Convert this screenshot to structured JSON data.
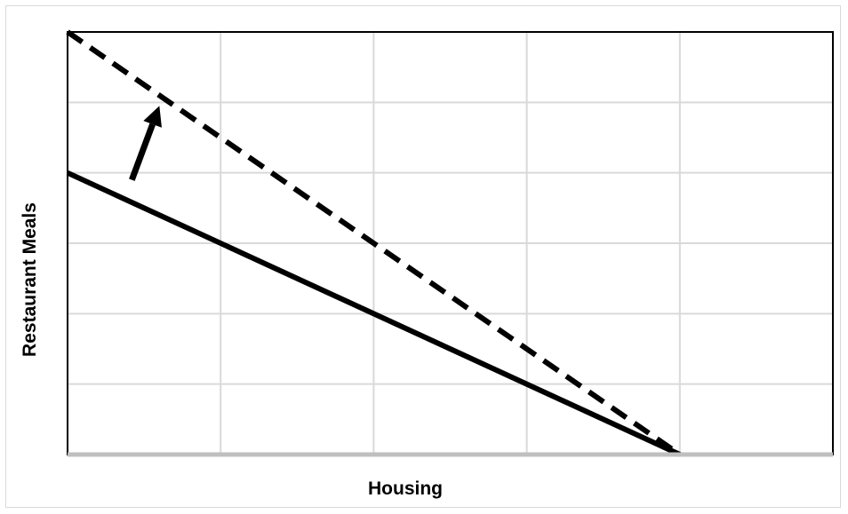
{
  "chart_data": {
    "type": "line",
    "title": "",
    "xlabel": "Housing",
    "ylabel": "Restaurant Meals",
    "xlim": [
      0,
      5
    ],
    "ylim": [
      0,
      6
    ],
    "grid": true,
    "tick_labels_shown": false,
    "series": [
      {
        "style": "solid",
        "color": "#000000",
        "x": [
          0,
          4
        ],
        "y": [
          4,
          0
        ]
      },
      {
        "style": "dashed",
        "color": "#000000",
        "x": [
          0,
          4
        ],
        "y": [
          6,
          0
        ]
      }
    ],
    "annotations": [
      {
        "type": "arrow",
        "from": [
          0.42,
          3.9
        ],
        "to": [
          0.6,
          4.95
        ],
        "color": "#000000"
      }
    ]
  },
  "colors": {
    "grid": "#d9d9d9",
    "plot_border": "#000000",
    "x_axis": "#bfbfbf"
  }
}
